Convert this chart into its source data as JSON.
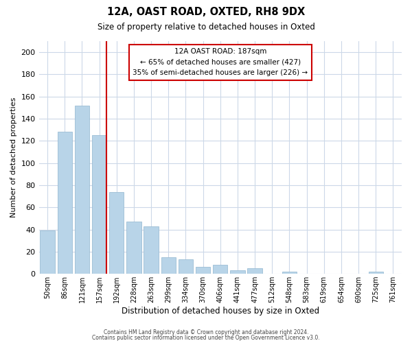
{
  "title": "12A, OAST ROAD, OXTED, RH8 9DX",
  "subtitle": "Size of property relative to detached houses in Oxted",
  "xlabel": "Distribution of detached houses by size in Oxted",
  "ylabel": "Number of detached properties",
  "bar_labels": [
    "50sqm",
    "86sqm",
    "121sqm",
    "157sqm",
    "192sqm",
    "228sqm",
    "263sqm",
    "299sqm",
    "334sqm",
    "370sqm",
    "406sqm",
    "441sqm",
    "477sqm",
    "512sqm",
    "548sqm",
    "583sqm",
    "619sqm",
    "654sqm",
    "690sqm",
    "725sqm",
    "761sqm"
  ],
  "bar_values": [
    39,
    128,
    152,
    125,
    74,
    47,
    43,
    15,
    13,
    6,
    8,
    3,
    5,
    0,
    2,
    0,
    0,
    0,
    0,
    2,
    0
  ],
  "bar_color": "#b8d4e8",
  "bar_edge_color": "#9bbdd4",
  "marker_color": "#cc0000",
  "annotation_title": "12A OAST ROAD: 187sqm",
  "annotation_line1": "← 65% of detached houses are smaller (427)",
  "annotation_line2": "35% of semi-detached houses are larger (226) →",
  "annotation_box_color": "#ffffff",
  "annotation_box_edge": "#cc0000",
  "ylim": [
    0,
    210
  ],
  "yticks": [
    0,
    20,
    40,
    60,
    80,
    100,
    120,
    140,
    160,
    180,
    200
  ],
  "footer1": "Contains HM Land Registry data © Crown copyright and database right 2024.",
  "footer2": "Contains public sector information licensed under the Open Government Licence v3.0.",
  "background_color": "#ffffff",
  "grid_color": "#ccd8e8"
}
